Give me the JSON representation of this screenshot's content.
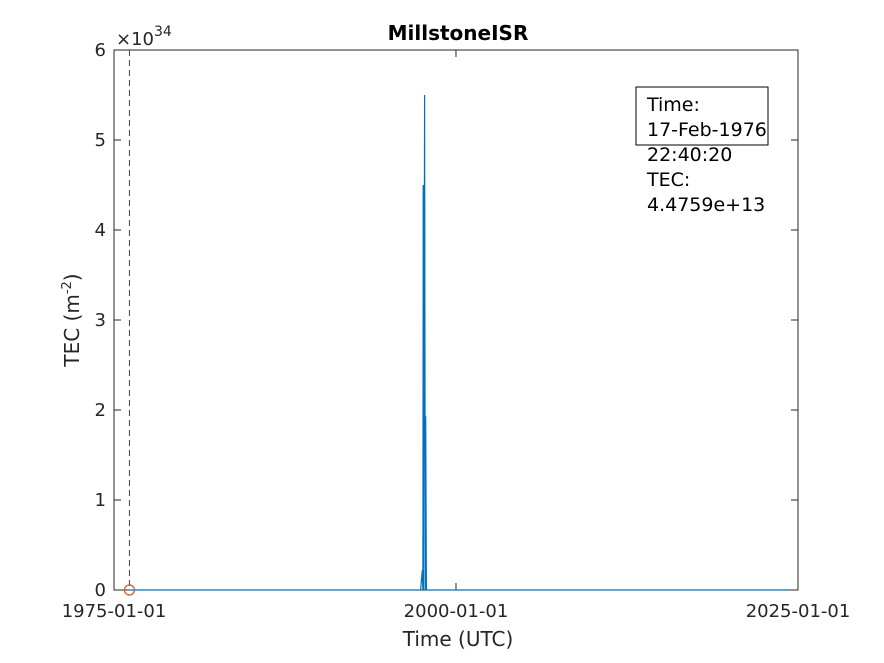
{
  "chart_data": {
    "type": "line",
    "title": "MillstoneISR",
    "xlabel": "Time (UTC)",
    "ylabel_base": "TEC (m",
    "ylabel_exp": "-2",
    "ylabel_close": ")",
    "exponent_prefix": "×10",
    "exponent": "34",
    "xlim": [
      "1975-01-01",
      "2025-01-01"
    ],
    "ylim": [
      0,
      6
    ],
    "x_ticks": [
      "1975-01-01",
      "2000-01-01",
      "2025-01-01"
    ],
    "y_ticks": [
      "0",
      "1",
      "2",
      "3",
      "4",
      "5",
      "6"
    ],
    "grid": false,
    "series": [
      {
        "color": "#0072BD",
        "x": [
          "1976-02-17",
          "1997-06-01",
          "1997-07-15",
          "1997-08-01",
          "1997-08-10",
          "1997-08-20",
          "1997-09-15",
          "1997-10-05",
          "1997-10-15",
          "1997-11-01",
          "2024-03-01"
        ],
        "y": [
          0,
          0,
          0.22,
          0,
          4.5,
          0,
          5.5,
          0,
          1.93,
          0,
          0
        ]
      }
    ],
    "cursor": {
      "date": "1976-02-17",
      "marker_color": "#D95319",
      "line_color": "#444444"
    },
    "annotation": {
      "lines": [
        "Time:",
        "17-Feb-1976",
        "22:40:20",
        "TEC:",
        "4.4759e+13"
      ]
    }
  }
}
